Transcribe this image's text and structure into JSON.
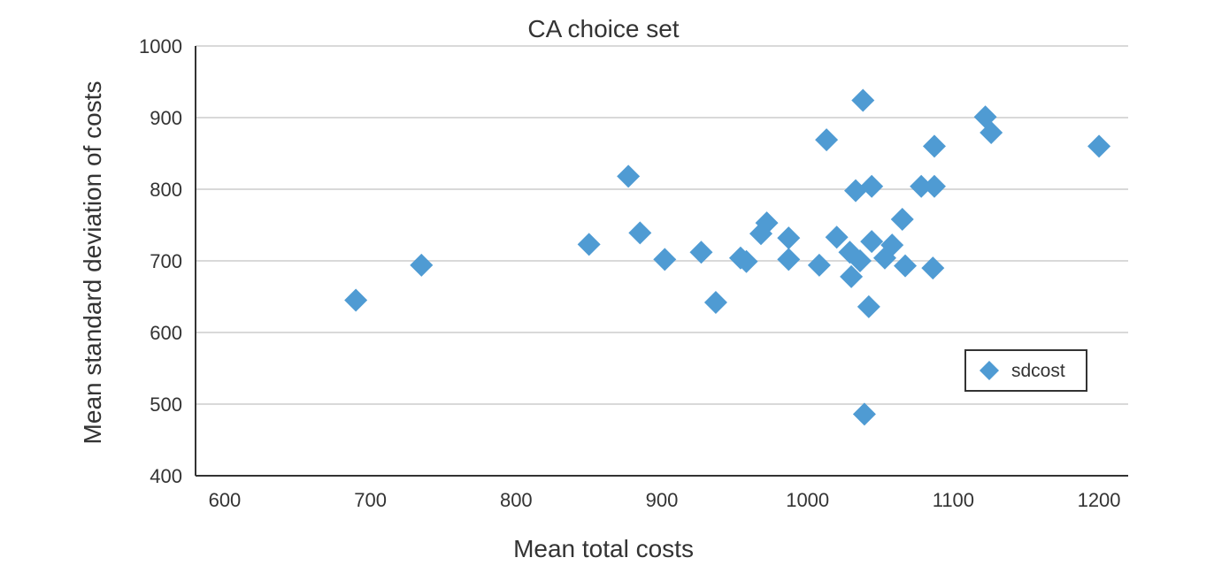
{
  "chart_data": {
    "type": "scatter",
    "title": "CA choice set",
    "xlabel": "Mean total costs",
    "ylabel": "Mean standard deviation of costs",
    "xlim": [
      580,
      1220
    ],
    "ylim": [
      400,
      1000
    ],
    "xticks": [
      600,
      700,
      800,
      900,
      1000,
      1100,
      1200
    ],
    "yticks": [
      400,
      500,
      600,
      700,
      800,
      900,
      1000
    ],
    "grid": true,
    "legend_position": "right",
    "series": [
      {
        "name": "sdcost",
        "color": "#4f9bd3",
        "marker": "diamond",
        "points": [
          {
            "x": 690,
            "y": 645
          },
          {
            "x": 735,
            "y": 694
          },
          {
            "x": 850,
            "y": 723
          },
          {
            "x": 877,
            "y": 818
          },
          {
            "x": 885,
            "y": 739
          },
          {
            "x": 902,
            "y": 702
          },
          {
            "x": 927,
            "y": 712
          },
          {
            "x": 937,
            "y": 642
          },
          {
            "x": 954,
            "y": 704
          },
          {
            "x": 958,
            "y": 699
          },
          {
            "x": 968,
            "y": 738
          },
          {
            "x": 972,
            "y": 753
          },
          {
            "x": 987,
            "y": 732
          },
          {
            "x": 987,
            "y": 702
          },
          {
            "x": 1008,
            "y": 694
          },
          {
            "x": 1013,
            "y": 869
          },
          {
            "x": 1020,
            "y": 733
          },
          {
            "x": 1029,
            "y": 712
          },
          {
            "x": 1030,
            "y": 678
          },
          {
            "x": 1033,
            "y": 798
          },
          {
            "x": 1036,
            "y": 700
          },
          {
            "x": 1038,
            "y": 924
          },
          {
            "x": 1039,
            "y": 486
          },
          {
            "x": 1042,
            "y": 636
          },
          {
            "x": 1044,
            "y": 727
          },
          {
            "x": 1044,
            "y": 804
          },
          {
            "x": 1053,
            "y": 704
          },
          {
            "x": 1058,
            "y": 722
          },
          {
            "x": 1065,
            "y": 758
          },
          {
            "x": 1067,
            "y": 693
          },
          {
            "x": 1078,
            "y": 804
          },
          {
            "x": 1086,
            "y": 690
          },
          {
            "x": 1087,
            "y": 860
          },
          {
            "x": 1087,
            "y": 804
          },
          {
            "x": 1122,
            "y": 901
          },
          {
            "x": 1126,
            "y": 879
          },
          {
            "x": 1200,
            "y": 860
          }
        ]
      }
    ]
  }
}
